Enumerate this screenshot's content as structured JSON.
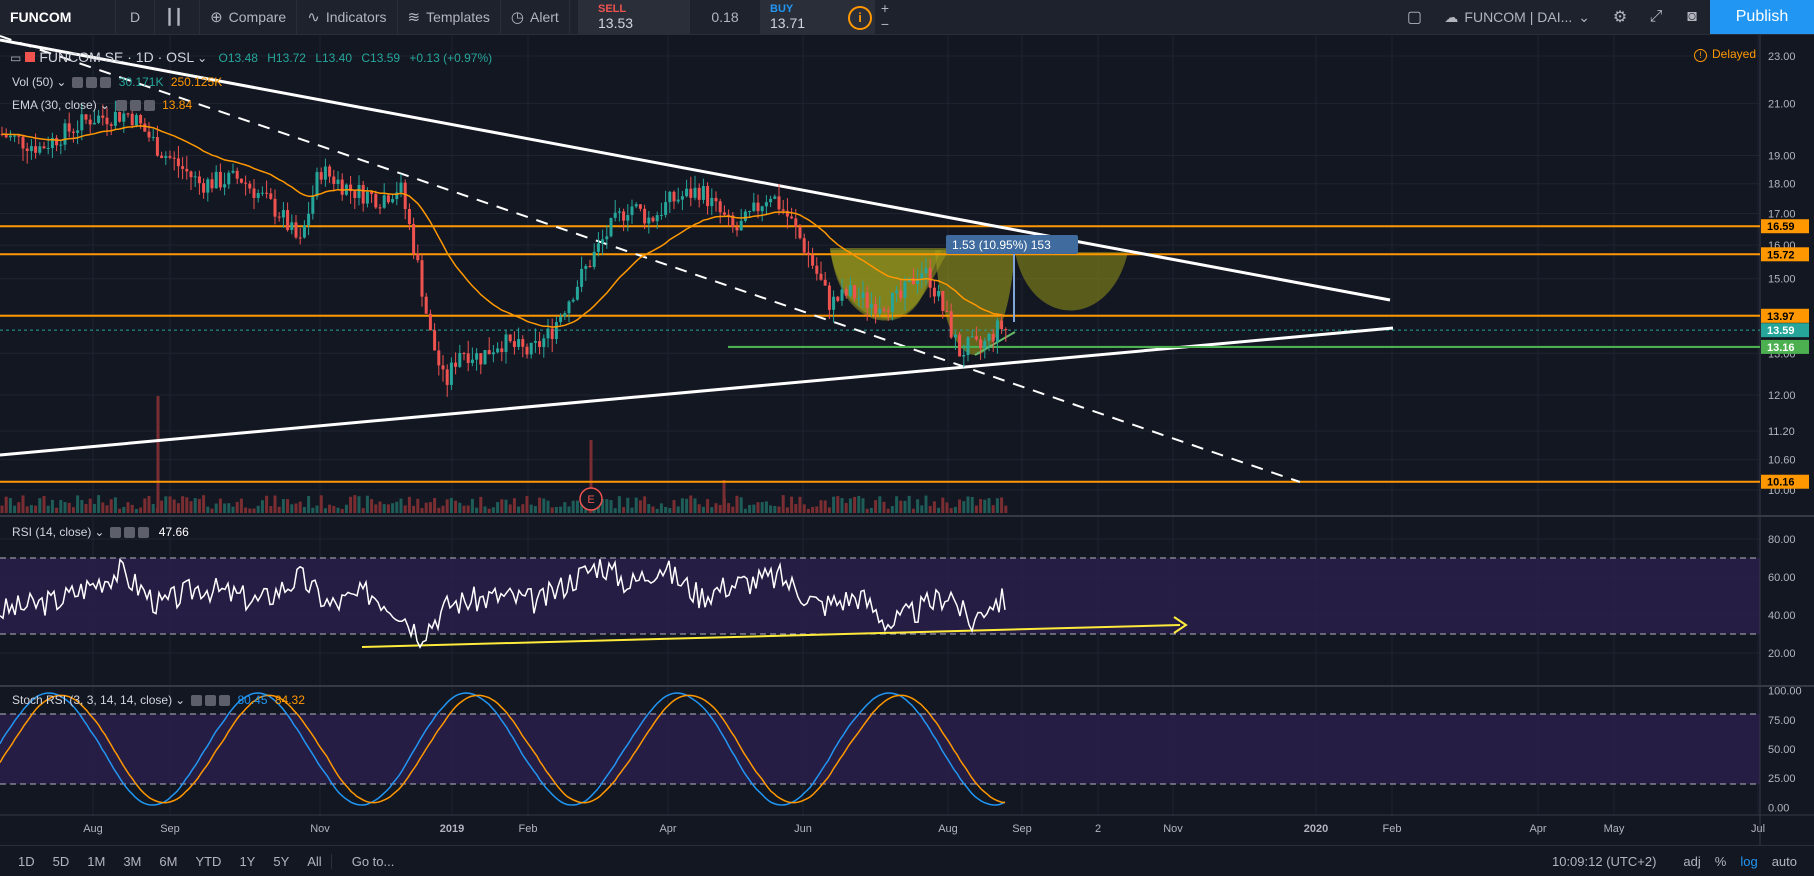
{
  "toolbar": {
    "symbol": "FUNCOM",
    "interval": "D",
    "compare": "Compare",
    "indicators": "Indicators",
    "templates": "Templates",
    "alert": "Alert",
    "sell_label": "SELL",
    "sell_price": "13.53",
    "spread": "0.18",
    "buy_label": "BUY",
    "buy_price": "13.71",
    "info": "i",
    "plus": "+",
    "minus": "−",
    "layout_name": "FUNCOM | DAI...",
    "publish": "Publish"
  },
  "legend": {
    "title": "FUNCOM SE · 1D · OSL",
    "open": "O13.48",
    "high": "H13.72",
    "low": "L13.40",
    "close": "C13.59",
    "change": "+0.13 (+0.97%)",
    "vol_label": "Vol (50)",
    "vol_value": "30.171K",
    "vol_ma": "250.125K",
    "ema_label": "EMA (30, close)",
    "ema_value": "13.84",
    "rsi_label": "RSI (14, close)",
    "rsi_value": "47.66",
    "stoch_label": "Stoch RSI (3, 3, 14, 14, close)",
    "stoch_k": "80.45",
    "stoch_d": "84.32"
  },
  "delayed": "Delayed",
  "measure_label": "1.53 (10.95%) 153",
  "earnings_marker": "E",
  "chart_data": {
    "type": "candlestick",
    "price_axis": {
      "ticks": [
        "23.00",
        "21.00",
        "19.00",
        "18.00",
        "17.00",
        "16.00",
        "15.00",
        "14.00",
        "13.00",
        "12.00",
        "11.20",
        "10.60",
        "10.00"
      ],
      "ylim": [
        10,
        23.5
      ],
      "scale": "log"
    },
    "rsi_axis": {
      "ticks": [
        "80.00",
        "60.00",
        "40.00",
        "20.00"
      ],
      "band": [
        30,
        70
      ]
    },
    "stoch_axis": {
      "ticks": [
        "100.00",
        "75.00",
        "50.00",
        "25.00",
        "0.00"
      ],
      "band": [
        20,
        80
      ]
    },
    "time_axis": [
      "Aug",
      "Sep",
      "Nov",
      "2019",
      "Feb",
      "Apr",
      "Jun",
      "Aug",
      "Sep",
      "2",
      "Nov",
      "2020",
      "Feb",
      "Apr",
      "May",
      "Jul"
    ],
    "horizontal_levels": [
      {
        "value": 16.59,
        "label": "16.59",
        "color": "#ff9800"
      },
      {
        "value": 15.72,
        "label": "15.72",
        "color": "#ff9800"
      },
      {
        "value": 13.97,
        "label": "13.97",
        "color": "#ff9800"
      },
      {
        "value": 13.59,
        "label": "13.59",
        "color": "#26a69a"
      },
      {
        "value": 13.16,
        "label": "13.16",
        "color": "#4caf50"
      },
      {
        "value": 10.16,
        "label": "10.16",
        "color": "#ff9800"
      }
    ],
    "last_price": 13.59
  },
  "bottombar": {
    "ranges": [
      "1D",
      "5D",
      "1M",
      "3M",
      "6M",
      "YTD",
      "1Y",
      "5Y",
      "All"
    ],
    "goto": "Go to...",
    "time": "10:09:12 (UTC+2)",
    "adj": "adj",
    "pct": "%",
    "log": "log",
    "auto": "auto"
  }
}
